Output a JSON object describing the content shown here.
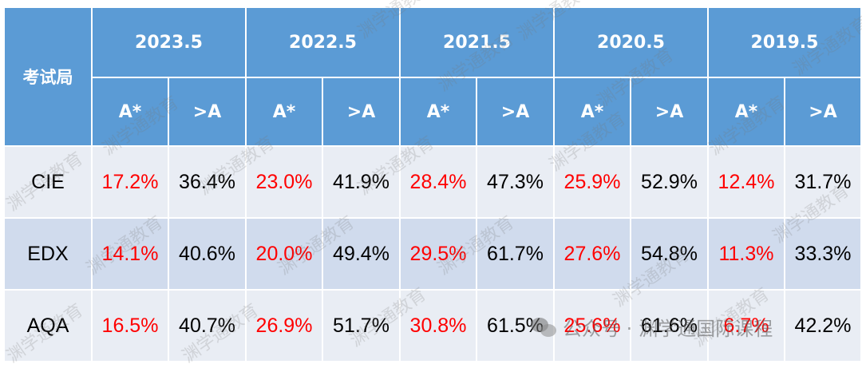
{
  "table": {
    "board_header": "考试局",
    "years": [
      "2023.5",
      "2022.5",
      "2021.5",
      "2020.5",
      "2019.5"
    ],
    "sub_headers": [
      "A*",
      ">A"
    ],
    "rows": [
      {
        "board": "CIE",
        "values": [
          "17.2%",
          "36.4%",
          "23.0%",
          "41.9%",
          "28.4%",
          "47.3%",
          "25.9%",
          "52.9%",
          "12.4%",
          "31.7%"
        ]
      },
      {
        "board": "EDX",
        "values": [
          "14.1%",
          "40.6%",
          "20.0%",
          "49.4%",
          "29.5%",
          "61.7%",
          "27.6%",
          "54.8%",
          "11.3%",
          "33.3%"
        ]
      },
      {
        "board": "AQA",
        "values": [
          "16.5%",
          "40.7%",
          "26.9%",
          "51.7%",
          "30.8%",
          "61.5%",
          "25.6%",
          "61.6%",
          "6.7%",
          "42.2%"
        ]
      }
    ]
  },
  "watermark": {
    "text": "渊学通教育",
    "footer_prefix": "公众号 · ",
    "footer_name": "渊学通国际课程",
    "icon": "wechat-icon"
  },
  "colors": {
    "header_bg": "#5b9bd5",
    "row_light": "#e9edf4",
    "row_dark": "#d0dbed",
    "astar_text": "#ff0000"
  }
}
